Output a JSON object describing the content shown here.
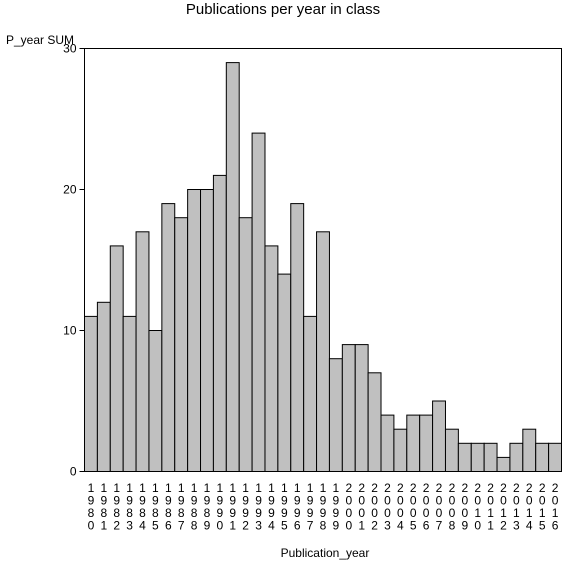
{
  "chart_data": {
    "type": "bar",
    "title": "Publications per year in class",
    "ylabel": "P_year SUM",
    "xlabel": "Publication_year",
    "categories": [
      "1980",
      "1981",
      "1982",
      "1983",
      "1984",
      "1985",
      "1986",
      "1987",
      "1988",
      "1989",
      "1990",
      "1991",
      "1992",
      "1993",
      "1994",
      "1995",
      "1996",
      "1997",
      "1998",
      "1999",
      "2000",
      "2001",
      "2002",
      "2003",
      "2004",
      "2005",
      "2006",
      "2007",
      "2008",
      "2009",
      "2010",
      "2011",
      "2012",
      "2013",
      "2014",
      "2015",
      "2016"
    ],
    "values": [
      11,
      12,
      16,
      11,
      17,
      10,
      19,
      18,
      20,
      20,
      21,
      29,
      18,
      24,
      16,
      14,
      19,
      11,
      17,
      8,
      9,
      9,
      7,
      4,
      3,
      4,
      4,
      5,
      3,
      2,
      2,
      2,
      1,
      2,
      3,
      2,
      2
    ],
    "yticks": [
      0,
      10,
      20,
      30
    ],
    "ylim": [
      0,
      30
    ],
    "grid": false,
    "legend": "none",
    "colors": {
      "bar_fill": "#c0c0c0",
      "bar_stroke": "#000000"
    }
  }
}
